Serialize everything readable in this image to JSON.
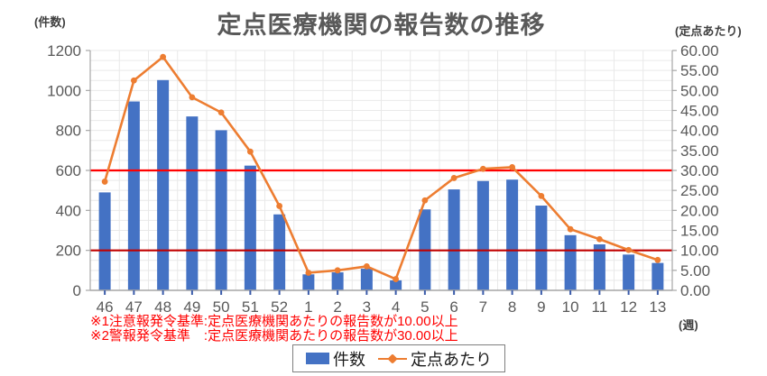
{
  "title": "定点医療機関の報告数の推移",
  "footnotes": [
    "※1注意報発令基準:定点医療機関あたりの報告数が10.00以上",
    "※2警報発令基準　:定点医療機関あたりの報告数が30.00以上"
  ],
  "legend": {
    "items": [
      {
        "label": "件数",
        "type": "bar",
        "color": "#4472C4"
      },
      {
        "label": "定点あたり",
        "type": "line",
        "color": "#ED7D31"
      }
    ]
  },
  "chart_data": {
    "type": "bar",
    "subtype": "combo-bar-line-dual-axis",
    "title": "定点医療機関の報告数の推移",
    "categories": [
      "46",
      "47",
      "48",
      "49",
      "50",
      "51",
      "52",
      "1",
      "2",
      "3",
      "4",
      "5",
      "6",
      "7",
      "8",
      "9",
      "10",
      "11",
      "12",
      "13"
    ],
    "x_axis": {
      "unit": "(週)"
    },
    "left_axis": {
      "unit": "(件数)",
      "min": 0,
      "max": 1200,
      "ticks": [
        "1200",
        "1000",
        "800",
        "600",
        "400",
        "200",
        "0"
      ],
      "tick_values": [
        1200,
        1000,
        800,
        600,
        400,
        200,
        0
      ]
    },
    "right_axis": {
      "unit": "(定点あたり)",
      "min": 0,
      "max": 60,
      "ticks": [
        "60.00",
        "55.00",
        "50.00",
        "45.00",
        "40.00",
        "35.00",
        "30.00",
        "25.00",
        "20.00",
        "15.00",
        "10.00",
        "5.00",
        "0.00"
      ],
      "tick_values": [
        60,
        55,
        50,
        45,
        40,
        35,
        30,
        25,
        20,
        15,
        10,
        5,
        0
      ]
    },
    "series": [
      {
        "name": "件数",
        "type": "bar",
        "axis": "left",
        "color": "#4472C4",
        "values": [
          490,
          945,
          1052,
          870,
          801,
          624,
          380,
          80,
          90,
          108,
          50,
          405,
          505,
          547,
          554,
          424,
          276,
          230,
          179,
          137
        ]
      },
      {
        "name": "定点あたり",
        "type": "line",
        "axis": "right",
        "color": "#ED7D31",
        "values": [
          27.2,
          52.5,
          58.4,
          48.3,
          44.5,
          34.7,
          21.1,
          4.4,
          5.0,
          6.0,
          2.8,
          22.5,
          28.1,
          30.4,
          30.8,
          23.6,
          15.3,
          12.8,
          10.1,
          7.6
        ]
      }
    ],
    "thresholds": [
      {
        "name": "警報発令基準",
        "axis": "right",
        "value": 30.0,
        "color": "#FF0000"
      },
      {
        "name": "注意報発令基準",
        "axis": "right",
        "value": 10.0,
        "color": "#C00000"
      }
    ],
    "grid": {
      "horizontal_step_right_axis": 2.5,
      "vertical": "category-boundaries",
      "color": "#E9E9E9"
    },
    "legend_position": "bottom"
  }
}
